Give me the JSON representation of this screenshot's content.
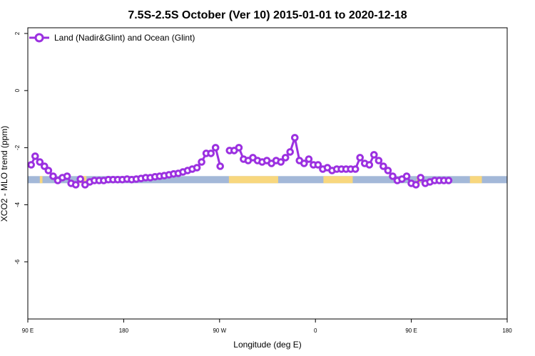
{
  "chart_data": {
    "type": "line",
    "title": "7.5S-2.5S October (Ver 10)   2015-01-01 to 2020-12-18",
    "xlabel": "Longitude (deg E)",
    "ylabel": "XCO2 - MLO trend (ppm)",
    "xlim": [
      90,
      450
    ],
    "ylim": [
      -8,
      2.2
    ],
    "x_ticks": [
      {
        "value": 90,
        "label": "90 E"
      },
      {
        "value": 162,
        "label": "180"
      },
      {
        "value": 234,
        "label": "90 W"
      },
      {
        "value": 306,
        "label": "0"
      },
      {
        "value": 378,
        "label": "90 E"
      },
      {
        "value": 450,
        "label": "180"
      }
    ],
    "y_ticks": [
      {
        "value": 2,
        "label": "2"
      },
      {
        "value": 0,
        "label": "0"
      },
      {
        "value": -2,
        "label": "-2"
      },
      {
        "value": -4,
        "label": "-4"
      },
      {
        "value": -6,
        "label": "-6"
      }
    ],
    "legend": {
      "position": "top-left",
      "entries": [
        "Land (Nadir&Glint) and Ocean (Glint)"
      ]
    },
    "colors": {
      "series": "#9b30e0",
      "ocean": "#a3b8d8",
      "land": "#f8d77e"
    },
    "series": [
      {
        "name": "Land (Nadir&Glint) and Ocean (Glint)",
        "points": [
          [
            92.5,
            -2.6
          ],
          [
            95.5,
            -2.3
          ],
          [
            99,
            -2.5
          ],
          [
            102.5,
            -2.65
          ],
          [
            105.5,
            -2.8
          ],
          [
            109,
            -3.0
          ],
          [
            112.5,
            -3.15
          ],
          [
            116,
            -3.05
          ],
          [
            119.5,
            -3.0
          ],
          [
            122.5,
            -3.25
          ],
          [
            126,
            -3.3
          ],
          [
            129.5,
            -3.1
          ],
          [
            133,
            -3.3
          ],
          [
            136.5,
            -3.2
          ],
          [
            140,
            -3.15
          ],
          [
            143.5,
            -3.15
          ],
          [
            147,
            -3.15
          ],
          [
            150.5,
            -3.12
          ],
          [
            154,
            -3.12
          ],
          [
            157.5,
            -3.12
          ],
          [
            161,
            -3.12
          ],
          [
            164.5,
            -3.1
          ],
          [
            168,
            -3.12
          ],
          [
            171.5,
            -3.1
          ],
          [
            175,
            -3.08
          ],
          [
            178.5,
            -3.05
          ],
          [
            182,
            -3.05
          ],
          [
            185.5,
            -3.02
          ],
          [
            189,
            -3.0
          ],
          [
            192.5,
            -2.98
          ],
          [
            196,
            -2.95
          ],
          [
            199.5,
            -2.92
          ],
          [
            203,
            -2.9
          ],
          [
            206.5,
            -2.85
          ],
          [
            210,
            -2.8
          ],
          [
            213.5,
            -2.75
          ],
          [
            217,
            -2.7
          ],
          [
            220.5,
            -2.5
          ],
          [
            224,
            -2.2
          ],
          [
            227.5,
            -2.2
          ],
          [
            231,
            -2.0
          ],
          [
            234.5,
            -2.65
          ],
          null,
          [
            241.5,
            -2.1
          ],
          [
            245,
            -2.1
          ],
          [
            248.5,
            -2.0
          ],
          [
            252,
            -2.4
          ],
          [
            255.5,
            -2.45
          ],
          [
            259,
            -2.35
          ],
          [
            262.5,
            -2.45
          ],
          [
            266,
            -2.5
          ],
          [
            269.5,
            -2.45
          ],
          [
            273,
            -2.55
          ],
          [
            276.5,
            -2.45
          ],
          [
            280,
            -2.5
          ],
          [
            283.5,
            -2.35
          ],
          [
            287,
            -2.15
          ],
          [
            290.5,
            -1.65
          ],
          [
            294,
            -2.45
          ],
          [
            297.5,
            -2.55
          ],
          [
            301,
            -2.4
          ],
          [
            304.5,
            -2.6
          ],
          [
            308,
            -2.6
          ],
          [
            311.5,
            -2.75
          ],
          [
            315,
            -2.7
          ],
          [
            318.5,
            -2.8
          ],
          [
            322,
            -2.75
          ],
          [
            325.5,
            -2.75
          ],
          [
            329,
            -2.75
          ],
          [
            332.5,
            -2.75
          ],
          [
            336,
            -2.75
          ],
          [
            339.5,
            -2.35
          ],
          [
            343,
            -2.55
          ],
          [
            346.5,
            -2.6
          ],
          [
            350,
            -2.25
          ],
          [
            353.5,
            -2.45
          ],
          [
            357,
            -2.65
          ],
          [
            360.5,
            -2.8
          ],
          [
            364,
            -3.0
          ],
          [
            367.5,
            -3.15
          ],
          [
            371,
            -3.1
          ],
          [
            374.5,
            -3.0
          ],
          [
            378,
            -3.25
          ],
          [
            381.5,
            -3.3
          ],
          [
            385,
            -3.05
          ],
          [
            388.5,
            -3.25
          ],
          [
            392,
            -3.2
          ],
          [
            395.5,
            -3.15
          ],
          [
            399,
            -3.15
          ],
          [
            402.5,
            -3.15
          ],
          [
            406,
            -3.15
          ]
        ]
      }
    ],
    "surface_band": {
      "y_center": -3.12,
      "segments": [
        {
          "type": "ocean",
          "x": [
            90,
            450
          ]
        },
        {
          "type": "land",
          "x": [
            99,
            101
          ]
        },
        {
          "type": "land",
          "x": [
            128,
            134
          ]
        },
        {
          "type": "land",
          "x": [
            241,
            278
          ]
        },
        {
          "type": "land",
          "x": [
            312,
            334
          ]
        },
        {
          "type": "land",
          "x": [
            382,
            385
          ]
        },
        {
          "type": "land",
          "x": [
            422,
            431
          ]
        }
      ]
    }
  }
}
